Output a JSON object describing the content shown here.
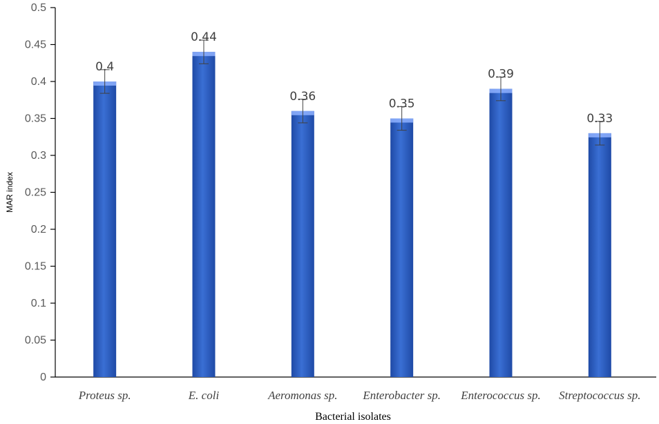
{
  "chart_data": {
    "type": "bar",
    "title": "",
    "xlabel": "Bacterial isolates",
    "ylabel": "MAR index",
    "categories": [
      "Proteus sp.",
      "E. coli",
      "Aeromonas sp.",
      "Enterobacter sp.",
      "Enterococcus sp.",
      "Streptococcus sp."
    ],
    "values": [
      0.4,
      0.44,
      0.36,
      0.35,
      0.39,
      0.33
    ],
    "data_labels": [
      "0.4",
      "0.44",
      "0.36",
      "0.35",
      "0.39",
      "0.33"
    ],
    "error": [
      0.016,
      0.016,
      0.016,
      0.016,
      0.016,
      0.016
    ],
    "ylim": [
      0,
      0.5
    ],
    "yticks": [
      0,
      0.05,
      0.1,
      0.15,
      0.2,
      0.25,
      0.3,
      0.35,
      0.4,
      0.45,
      0.5
    ],
    "ytick_labels": [
      "0",
      "0.05",
      "0.1",
      "0.15",
      "0.2",
      "0.25",
      "0.3",
      "0.35",
      "0.4",
      "0.45",
      "0.5"
    ],
    "grid": false,
    "legend": "none",
    "bar_color": "#3a6fd4",
    "bar_highlight_color": "#8fb2ff",
    "bar_shadow_color": "#1f4aa6"
  }
}
